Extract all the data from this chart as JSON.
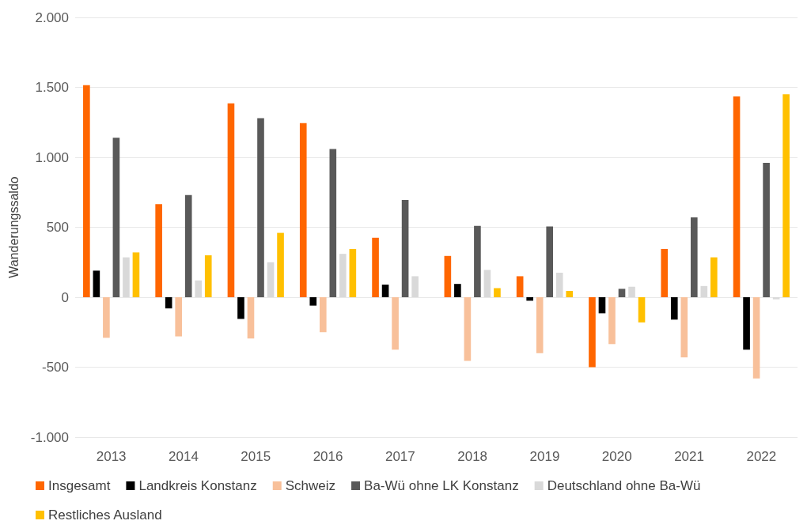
{
  "chart_data": {
    "type": "bar",
    "ylabel": "Wanderungssaldo",
    "categories": [
      "2013",
      "2014",
      "2015",
      "2016",
      "2017",
      "2018",
      "2019",
      "2020",
      "2021",
      "2022"
    ],
    "series": [
      {
        "name": "Insgesamt",
        "color": "#ff6600",
        "values": [
          1515,
          665,
          1385,
          1245,
          425,
          295,
          150,
          -500,
          345,
          1435
        ]
      },
      {
        "name": "Landkreis Konstanz",
        "color": "#000000",
        "values": [
          190,
          -80,
          -155,
          -60,
          90,
          95,
          -25,
          -115,
          -160,
          -375
        ]
      },
      {
        "name": "Schweiz",
        "color": "#f8c09a",
        "values": [
          -290,
          -280,
          -295,
          -250,
          -375,
          -455,
          -400,
          -335,
          -430,
          -580
        ]
      },
      {
        "name": "Ba-Wü ohne LK Konstanz",
        "color": "#595959",
        "values": [
          1140,
          730,
          1280,
          1060,
          695,
          510,
          505,
          60,
          570,
          960
        ]
      },
      {
        "name": "Deutschland ohne Ba-Wü",
        "color": "#d9d9d9",
        "values": [
          285,
          120,
          250,
          310,
          150,
          195,
          175,
          75,
          80,
          -15
        ]
      },
      {
        "name": "Restliches Ausland",
        "color": "#ffc000",
        "values": [
          320,
          300,
          460,
          345,
          0,
          65,
          45,
          -180,
          285,
          1450
        ]
      }
    ],
    "ylim": [
      -1000,
      2000
    ],
    "yticks": [
      {
        "value": -1000,
        "label": "-1.000"
      },
      {
        "value": -500,
        "label": "-500"
      },
      {
        "value": 0,
        "label": "0"
      },
      {
        "value": 500,
        "label": "500"
      },
      {
        "value": 1000,
        "label": "1.000"
      },
      {
        "value": 1500,
        "label": "1.500"
      },
      {
        "value": 2000,
        "label": "2.000"
      }
    ],
    "grid": "y",
    "legend": "bottom"
  }
}
